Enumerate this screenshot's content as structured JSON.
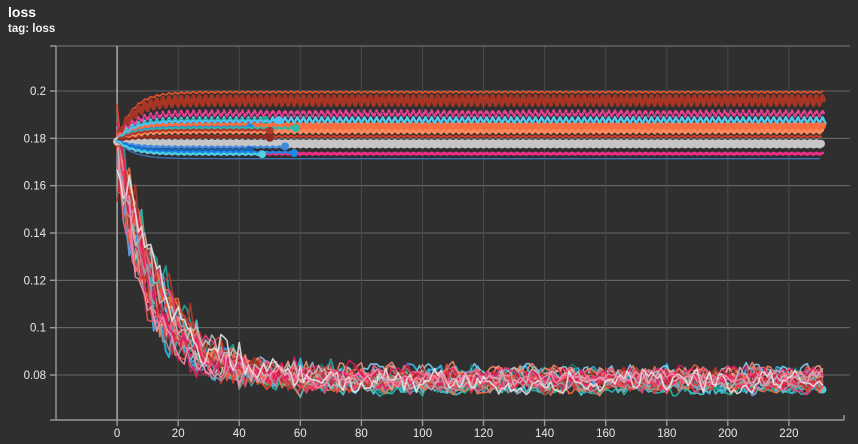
{
  "chart_data": {
    "type": "line",
    "title": "loss",
    "tag_label": "tag: loss",
    "xlabel": "",
    "ylabel": "",
    "xlim": [
      -20,
      240
    ],
    "ylim": [
      0.061,
      0.219
    ],
    "x_ticks": [
      0,
      20,
      40,
      60,
      80,
      100,
      120,
      140,
      160,
      180,
      200,
      220
    ],
    "x_tick_labels": [
      "0",
      "20",
      "40",
      "60",
      "80",
      "100",
      "120",
      "140",
      "160",
      "180",
      "200",
      "220"
    ],
    "y_ticks": [
      0.08,
      0.1,
      0.12,
      0.14,
      0.16,
      0.18,
      0.2
    ],
    "y_tick_labels": [
      "0.08",
      "0.1",
      "0.12",
      "0.14",
      "0.16",
      "0.18",
      "0.2"
    ],
    "grid": true,
    "legend": "none",
    "x_data_end": 231.5,
    "colors": {
      "background": "#2f2f2f",
      "grid_vertical": "#4a4a4a",
      "grid_horizontal": "#8a8a8a",
      "zero_line": "#b5b5b5",
      "axis": "#9a9a9a",
      "top_border": "#6e6e6e",
      "tick_text": "#eaeaea",
      "title_text": "#ffffff"
    },
    "description": "Many training runs: one group of runs plateaus between loss 0.171 and 0.200, another group converges from ~0.18 down to ~0.072-0.082 with noise; several runs stop early around step 44-59 with end-point dot markers.",
    "series": [
      {
        "kind": "converge",
        "color": "#4fc3f7",
        "start": 0.18,
        "final": 0.076,
        "tau": 14,
        "amp_early": 0.011,
        "amp_late": 0.0038,
        "seed": 11,
        "width": 2.2
      },
      {
        "kind": "converge",
        "color": "#29b6f6",
        "start": 0.1755,
        "final": 0.079,
        "tau": 12,
        "amp_early": 0.013,
        "amp_late": 0.0034,
        "seed": 12,
        "width": 1.8
      },
      {
        "kind": "converge",
        "color": "#4dd0e1",
        "start": 0.183,
        "final": 0.0748,
        "tau": 16,
        "amp_early": 0.009,
        "amp_late": 0.003,
        "seed": 13,
        "width": 1.8,
        "marker": true
      },
      {
        "kind": "converge",
        "color": "#35b7e8",
        "start": 0.17,
        "final": 0.08,
        "tau": 10,
        "amp_early": 0.014,
        "amp_late": 0.004,
        "seed": 14,
        "width": 2.0
      },
      {
        "kind": "converge",
        "color": "#7fd8f4",
        "start": 0.178,
        "final": 0.0772,
        "tau": 13,
        "amp_early": 0.01,
        "amp_late": 0.0028,
        "seed": 15,
        "width": 1.6
      },
      {
        "kind": "converge",
        "color": "#81d4fa",
        "start": 0.1725,
        "final": 0.0812,
        "tau": 11,
        "amp_early": 0.012,
        "amp_late": 0.0042,
        "seed": 16,
        "width": 1.6
      },
      {
        "kind": "converge",
        "color": "#1e88e5",
        "start": 0.177,
        "final": 0.0785,
        "tau": 15,
        "amp_early": 0.01,
        "amp_late": 0.003,
        "seed": 17,
        "width": 1.6
      },
      {
        "kind": "converge",
        "color": "#5c9ce6",
        "start": 0.169,
        "final": 0.077,
        "tau": 12,
        "amp_early": 0.011,
        "amp_late": 0.0033,
        "seed": 18,
        "width": 1.6
      },
      {
        "kind": "converge",
        "color": "#26a69a",
        "start": 0.181,
        "final": 0.0755,
        "tau": 17,
        "amp_early": 0.009,
        "amp_late": 0.0036,
        "seed": 19,
        "width": 1.8
      },
      {
        "kind": "converge",
        "color": "#00897b",
        "start": 0.1745,
        "final": 0.0795,
        "tau": 11,
        "amp_early": 0.012,
        "amp_late": 0.0044,
        "seed": 20,
        "width": 1.6
      },
      {
        "kind": "converge",
        "color": "#2bbbad",
        "start": 0.1785,
        "final": 0.0742,
        "tau": 14,
        "amp_early": 0.01,
        "amp_late": 0.003,
        "seed": 21,
        "width": 1.6
      },
      {
        "kind": "converge",
        "color": "#ff7043",
        "start": 0.182,
        "final": 0.0768,
        "tau": 15,
        "amp_early": 0.011,
        "amp_late": 0.004,
        "seed": 22,
        "width": 2.0
      },
      {
        "kind": "converge",
        "color": "#f4511e",
        "start": 0.176,
        "final": 0.0782,
        "tau": 12,
        "amp_early": 0.013,
        "amp_late": 0.0036,
        "seed": 23,
        "width": 1.8
      },
      {
        "kind": "converge",
        "color": "#ff8a65",
        "start": 0.1715,
        "final": 0.0808,
        "tau": 10,
        "amp_early": 0.012,
        "amp_late": 0.0042,
        "seed": 24,
        "width": 1.6
      },
      {
        "kind": "converge",
        "color": "#ff6e40",
        "start": 0.184,
        "final": 0.0752,
        "tau": 16,
        "amp_early": 0.009,
        "amp_late": 0.0032,
        "seed": 25,
        "width": 1.6
      },
      {
        "kind": "converge",
        "color": "#ffab91",
        "start": 0.1735,
        "final": 0.0798,
        "tau": 12,
        "amp_early": 0.01,
        "amp_late": 0.0038,
        "seed": 26,
        "width": 1.5
      },
      {
        "kind": "converge",
        "color": "#e53935",
        "start": 0.1795,
        "final": 0.0765,
        "tau": 14,
        "amp_early": 0.012,
        "amp_late": 0.004,
        "seed": 27,
        "width": 1.8
      },
      {
        "kind": "converge",
        "color": "#d32f2f",
        "start": 0.175,
        "final": 0.0785,
        "tau": 11,
        "amp_early": 0.013,
        "amp_late": 0.0045,
        "seed": 28,
        "width": 1.6
      },
      {
        "kind": "converge",
        "color": "#ef5350",
        "start": 0.1685,
        "final": 0.0802,
        "tau": 10,
        "amp_early": 0.011,
        "amp_late": 0.0036,
        "seed": 29,
        "width": 1.6
      },
      {
        "kind": "converge",
        "color": "#b0392b",
        "start": 0.1815,
        "final": 0.0772,
        "tau": 17,
        "amp_early": 0.009,
        "amp_late": 0.0046,
        "seed": 30,
        "width": 1.8
      },
      {
        "kind": "converge",
        "color": "#8e2a1f",
        "start": 0.177,
        "final": 0.079,
        "tau": 13,
        "amp_early": 0.01,
        "amp_late": 0.0034,
        "seed": 31,
        "width": 1.5
      },
      {
        "kind": "converge",
        "color": "#ec407a",
        "start": 0.1805,
        "final": 0.0758,
        "tau": 15,
        "amp_early": 0.011,
        "amp_late": 0.0038,
        "seed": 32,
        "width": 1.8
      },
      {
        "kind": "converge",
        "color": "#f06292",
        "start": 0.173,
        "final": 0.0795,
        "tau": 11,
        "amp_early": 0.013,
        "amp_late": 0.004,
        "seed": 33,
        "width": 1.6
      },
      {
        "kind": "converge",
        "color": "#e91e63",
        "start": 0.1765,
        "final": 0.0775,
        "tau": 13,
        "amp_early": 0.01,
        "amp_late": 0.0033,
        "seed": 34,
        "width": 1.6
      },
      {
        "kind": "converge",
        "color": "#d81b60",
        "start": 0.1695,
        "final": 0.081,
        "tau": 10,
        "amp_early": 0.012,
        "amp_late": 0.0037,
        "seed": 35,
        "width": 1.5
      },
      {
        "kind": "converge",
        "color": "#bdbdbd",
        "start": 0.1788,
        "final": 0.078,
        "tau": 14,
        "amp_early": 0.011,
        "amp_late": 0.0048,
        "seed": 36,
        "width": 1.6
      },
      {
        "kind": "converge",
        "color": "#9e9e9e",
        "start": 0.1742,
        "final": 0.076,
        "tau": 12,
        "amp_early": 0.01,
        "amp_late": 0.0035,
        "seed": 37,
        "width": 1.5
      },
      {
        "kind": "converge",
        "color": "#e8e8e8",
        "start": 0.1775,
        "final": 0.0772,
        "tau": 15,
        "amp_early": 0.012,
        "amp_late": 0.0052,
        "seed": 38,
        "width": 1.6
      },
      {
        "kind": "converge",
        "color": "#f48fb1",
        "start": 0.172,
        "final": 0.0788,
        "tau": 11,
        "amp_early": 0.011,
        "amp_late": 0.0034,
        "seed": 39,
        "width": 1.5
      },
      {
        "kind": "plateau",
        "color": "#e8512a",
        "level": 0.1995,
        "zig": 0.0004,
        "zig_period": 2,
        "width": 1.6,
        "end": 231.0
      },
      {
        "kind": "plateau",
        "color": "#a83523",
        "level": 0.196,
        "zig": 0.0019,
        "zig_period": 2,
        "width": 4.0,
        "end": 231.5
      },
      {
        "kind": "plateau",
        "color": "#ea3f96",
        "level": 0.1905,
        "zig": 0.0013,
        "zig_period": 2,
        "width": 2.4,
        "end": 231.8,
        "dash": "2 2.6"
      },
      {
        "kind": "plateau",
        "color": "#55c8ee",
        "level": 0.1876,
        "zig": 0.0013,
        "zig_period": 2,
        "width": 2.4,
        "end": 232.0
      },
      {
        "kind": "plateau",
        "color": "#f96e41",
        "level": 0.1845,
        "zig": 0.0008,
        "zig_period": 2,
        "width": 7.0,
        "end": 231.3
      },
      {
        "kind": "plateau",
        "color": "#ff8a5c",
        "level": 0.1828,
        "zig": 0.0006,
        "zig_period": 2,
        "width": 3.0,
        "end": 231.0
      },
      {
        "kind": "plateau",
        "color": "#d63b25",
        "level": 0.1808,
        "zig": 0.0003,
        "zig_period": 2,
        "width": 2.0,
        "end": 230.5
      },
      {
        "kind": "plateau",
        "color": "#c6c6c6",
        "level": 0.1777,
        "zig": 0.0003,
        "zig_period": 2,
        "width": 8.0,
        "end": 230.8
      },
      {
        "kind": "plateau",
        "color": "#ee2d88",
        "level": 0.1735,
        "zig": 0.0003,
        "zig_period": 2,
        "width": 3.0,
        "end": 231.4
      },
      {
        "kind": "plateau",
        "color": "#3f6fb5",
        "level": 0.1714,
        "zig": 0.0,
        "zig_period": 2,
        "width": 1.4,
        "end": 230.0
      },
      {
        "kind": "plateau",
        "color": "#26a69a",
        "level": 0.1878,
        "zig": 0.0003,
        "zig_period": 2,
        "width": 2.2,
        "end": 48.5,
        "marker": true
      },
      {
        "kind": "plateau",
        "color": "#4fc3f7",
        "level": 0.1873,
        "zig": 0.0003,
        "zig_period": 2,
        "width": 2.2,
        "end": 53.4,
        "marker": true
      },
      {
        "kind": "plateau",
        "color": "#1e88e5",
        "level": 0.1847,
        "zig": 0.0003,
        "zig_period": 2,
        "width": 2.2,
        "end": 43.6,
        "marker": true
      },
      {
        "kind": "plateau",
        "color": "#2bbbad",
        "level": 0.1843,
        "zig": 0.0003,
        "zig_period": 2,
        "width": 2.2,
        "end": 58.7,
        "marker": true
      },
      {
        "kind": "plateau",
        "color": "#b0392b",
        "level": 0.1835,
        "zig": 0.0003,
        "zig_period": 2,
        "width": 2.2,
        "end": 50.0,
        "marker": true
      },
      {
        "kind": "plateau",
        "color": "#8e2a1f",
        "level": 0.1805,
        "zig": 0.0003,
        "zig_period": 2,
        "width": 2.2,
        "end": 50.0,
        "marker": true
      },
      {
        "kind": "plateau",
        "color": "#428ae0",
        "level": 0.1763,
        "zig": 0.0003,
        "zig_period": 2,
        "width": 2.2,
        "end": 55.0,
        "marker": true
      },
      {
        "kind": "plateau",
        "color": "#1565c0",
        "level": 0.175,
        "zig": 0.0003,
        "zig_period": 2,
        "width": 2.2,
        "end": 43.6,
        "marker": true
      },
      {
        "kind": "plateau",
        "color": "#1e88e5",
        "level": 0.1741,
        "zig": 0.0003,
        "zig_period": 2,
        "width": 2.2,
        "end": 58.4,
        "marker": true
      },
      {
        "kind": "plateau",
        "color": "#4dd0e1",
        "level": 0.1733,
        "zig": 0.0003,
        "zig_period": 2,
        "width": 2.2,
        "end": 47.5,
        "marker": true
      }
    ]
  }
}
